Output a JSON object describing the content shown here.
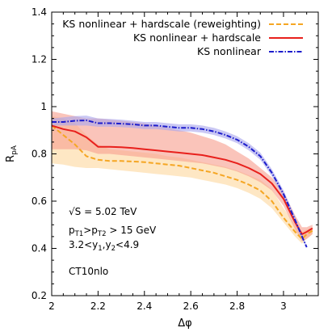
{
  "chart_data": {
    "type": "line",
    "xlabel": "Δφ",
    "ylabel_main": "R",
    "ylabel_sub": "pA",
    "xlim": [
      2.0,
      3.15
    ],
    "ylim": [
      0.2,
      1.4
    ],
    "xticks": [
      2,
      2.2,
      2.4,
      2.6,
      2.8,
      3
    ],
    "xtick_labels": [
      "2",
      "2.2",
      "2.4",
      "2.6",
      "2.8",
      "3"
    ],
    "yticks": [
      0.2,
      0.4,
      0.6,
      0.8,
      1.0,
      1.2,
      1.4
    ],
    "ytick_labels": [
      "0.2",
      "0.4",
      "0.6",
      "0.8",
      "1",
      "1.2",
      "1.4"
    ],
    "legend_position": "top-right",
    "series": [
      {
        "name": "KS nonlinear + hardscale (reweighting)",
        "color": "#f5a623",
        "band_color": "#fdd9a0",
        "style": "dashed",
        "x": [
          2.0,
          2.05,
          2.1,
          2.15,
          2.2,
          2.25,
          2.3,
          2.35,
          2.4,
          2.45,
          2.5,
          2.55,
          2.6,
          2.65,
          2.7,
          2.75,
          2.8,
          2.85,
          2.9,
          2.95,
          3.0,
          3.05,
          3.08,
          3.1,
          3.125
        ],
        "values": [
          0.92,
          0.88,
          0.84,
          0.79,
          0.775,
          0.77,
          0.77,
          0.768,
          0.765,
          0.76,
          0.755,
          0.75,
          0.74,
          0.73,
          0.72,
          0.705,
          0.69,
          0.67,
          0.645,
          0.6,
          0.53,
          0.47,
          0.44,
          0.46,
          0.475
        ],
        "band_low": [
          0.76,
          0.755,
          0.745,
          0.74,
          0.74,
          0.735,
          0.73,
          0.725,
          0.72,
          0.715,
          0.71,
          0.705,
          0.7,
          0.69,
          0.68,
          0.67,
          0.655,
          0.635,
          0.61,
          0.57,
          0.51,
          0.45,
          0.42,
          0.44,
          0.46
        ],
        "band_high": [
          0.96,
          0.95,
          0.93,
          0.88,
          0.84,
          0.82,
          0.815,
          0.81,
          0.805,
          0.8,
          0.79,
          0.785,
          0.775,
          0.765,
          0.755,
          0.745,
          0.73,
          0.71,
          0.69,
          0.65,
          0.57,
          0.5,
          0.47,
          0.48,
          0.49
        ]
      },
      {
        "name": "KS nonlinear + hardscale",
        "color": "#e8201c",
        "band_color": "#f7a090",
        "style": "solid",
        "x": [
          2.0,
          2.05,
          2.1,
          2.15,
          2.2,
          2.25,
          2.3,
          2.35,
          2.4,
          2.45,
          2.5,
          2.55,
          2.6,
          2.65,
          2.7,
          2.75,
          2.8,
          2.85,
          2.9,
          2.95,
          3.0,
          3.05,
          3.08,
          3.1,
          3.125
        ],
        "values": [
          0.92,
          0.905,
          0.895,
          0.87,
          0.83,
          0.83,
          0.828,
          0.825,
          0.82,
          0.815,
          0.81,
          0.805,
          0.8,
          0.795,
          0.785,
          0.775,
          0.76,
          0.74,
          0.715,
          0.675,
          0.61,
          0.51,
          0.46,
          0.47,
          0.485
        ],
        "band_low": [
          0.82,
          0.82,
          0.82,
          0.815,
          0.8,
          0.8,
          0.795,
          0.79,
          0.785,
          0.78,
          0.775,
          0.77,
          0.765,
          0.76,
          0.75,
          0.74,
          0.725,
          0.705,
          0.68,
          0.645,
          0.58,
          0.48,
          0.43,
          0.44,
          0.46
        ],
        "band_high": [
          0.98,
          0.97,
          0.96,
          0.95,
          0.95,
          0.945,
          0.94,
          0.935,
          0.93,
          0.92,
          0.91,
          0.9,
          0.89,
          0.875,
          0.86,
          0.84,
          0.81,
          0.78,
          0.74,
          0.7,
          0.64,
          0.54,
          0.49,
          0.49,
          0.5
        ]
      },
      {
        "name": "KS nonlinear",
        "color": "#1c1ccc",
        "band_color": "#a9a6ee",
        "style": "dashdot",
        "x": [
          2.0,
          2.05,
          2.1,
          2.15,
          2.2,
          2.25,
          2.3,
          2.35,
          2.4,
          2.45,
          2.5,
          2.55,
          2.6,
          2.65,
          2.7,
          2.75,
          2.8,
          2.85,
          2.9,
          2.95,
          3.0,
          3.05,
          3.08,
          3.1
        ],
        "values": [
          0.935,
          0.935,
          0.94,
          0.942,
          0.93,
          0.93,
          0.928,
          0.925,
          0.92,
          0.92,
          0.915,
          0.91,
          0.91,
          0.905,
          0.895,
          0.88,
          0.86,
          0.83,
          0.79,
          0.72,
          0.63,
          0.52,
          0.45,
          0.405
        ],
        "band_low": [
          0.92,
          0.92,
          0.92,
          0.92,
          0.915,
          0.915,
          0.913,
          0.91,
          0.905,
          0.905,
          0.9,
          0.895,
          0.895,
          0.89,
          0.88,
          0.865,
          0.845,
          0.815,
          0.775,
          0.705,
          0.615,
          0.505,
          0.44,
          0.4
        ],
        "band_high": [
          0.95,
          0.955,
          0.96,
          0.962,
          0.95,
          0.948,
          0.945,
          0.94,
          0.935,
          0.935,
          0.93,
          0.925,
          0.925,
          0.92,
          0.91,
          0.895,
          0.875,
          0.845,
          0.805,
          0.735,
          0.645,
          0.535,
          0.46,
          0.41
        ]
      }
    ],
    "annotations": [
      "√S = 5.02 TeV",
      "pT1>pT2 > 15 GeV",
      "3.2<y1,y2<4.9",
      "CT10nlo"
    ],
    "annotation_parts": {
      "sqrt_s": "√S = 5.02 TeV",
      "pt": {
        "p1": "p",
        "s1": "T1",
        "mid": ">p",
        "s2": "T2",
        "tail": " > 15 GeV"
      },
      "y": {
        "a": "3.2<y",
        "s1": "1",
        "mid": ",y",
        "s2": "2",
        "tail": "<4.9"
      },
      "pdf": "CT10nlo"
    }
  }
}
